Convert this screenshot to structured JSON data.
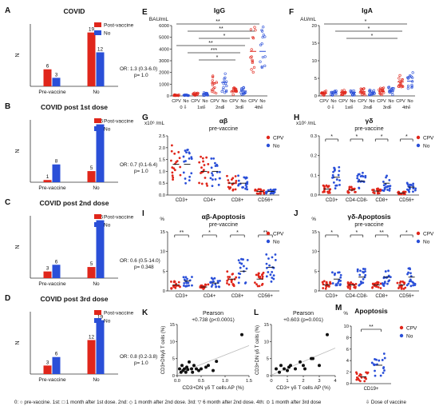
{
  "colors": {
    "cpv": "#e0261b",
    "no": "#2a4fd8",
    "line": "#222222",
    "axis": "#333333",
    "fit": "#bbbbbb"
  },
  "legend": {
    "cpv_bar": "Post-vaccine",
    "no": "No",
    "cpv_scatter": "CPV"
  },
  "footer": {
    "text": "0: ○ pre-vaccine.  1st: □ 1 month after 1st dose.  2nd: ◇ 1 month after 2nd dose.  3rd: ▽ 6 month after 2nd dose.  4th: ⊙ 1 month after 3rd dose",
    "vaccine_label": "Dose of vaccine"
  },
  "chart_data": [
    {
      "id": "A",
      "panel": "A",
      "type": "bar",
      "title": "COVID",
      "ylabel": "N",
      "categories": [
        "Pre-vaccine",
        "No"
      ],
      "series": [
        {
          "name": "Post-vaccine",
          "values": [
            6,
            19
          ]
        },
        {
          "name": "No",
          "values": [
            3,
            12
          ]
        }
      ],
      "ylim": [
        0,
        22
      ],
      "stat_line1": "OR: 1.3 (0.3-6.0)",
      "stat_line2": "p= 1.0"
    },
    {
      "id": "B",
      "panel": "B",
      "type": "bar",
      "title": "COVID post 1st dose",
      "ylabel": "N",
      "categories": [
        "Pre-vaccine",
        "No"
      ],
      "series": [
        {
          "name": "Post-vaccine",
          "values": [
            1,
            5
          ]
        },
        {
          "name": "No",
          "values": [
            8,
            26
          ]
        }
      ],
      "ylim": [
        0,
        28
      ],
      "stat_line1": "OR: 0.7 (0.1-6.4)",
      "stat_line2": "p= 1.0"
    },
    {
      "id": "C",
      "panel": "C",
      "type": "bar",
      "title": "COVID post 2nd dose",
      "ylabel": "N",
      "categories": [
        "Pre-vaccine",
        "No"
      ],
      "series": [
        {
          "name": "Post-vaccine",
          "values": [
            3,
            5
          ]
        },
        {
          "name": "No",
          "values": [
            6,
            26
          ]
        }
      ],
      "ylim": [
        0,
        28
      ],
      "stat_line1": "OR: 0.6 (0.5-14.0)",
      "stat_line2": "p= 0.348"
    },
    {
      "id": "D",
      "panel": "D",
      "type": "bar",
      "title": "COVID post 3rd dose",
      "ylabel": "N",
      "categories": [
        "Pre-vaccine",
        "No"
      ],
      "series": [
        {
          "name": "Post-vaccine",
          "values": [
            3,
            12
          ]
        },
        {
          "name": "No",
          "values": [
            6,
            19
          ]
        }
      ],
      "ylim": [
        0,
        22
      ],
      "stat_line1": "OR: 0.8 (0.2-3.8)",
      "stat_line2": "p= 1.0"
    },
    {
      "id": "E",
      "panel": "E",
      "type": "scatter",
      "title": "IgG",
      "ylabel": "BAU/mL",
      "ylim": [
        0,
        6000
      ],
      "yticks": [
        "0",
        "1000",
        "2000",
        "3000",
        "4000",
        "5000",
        "6000"
      ],
      "categories": [
        "CPV",
        "No",
        "CPV",
        "No",
        "CPV",
        "No",
        "CPV",
        "No",
        "CPV",
        "No"
      ],
      "groups": [
        "0",
        "1st",
        "2nd",
        "3rd",
        "4th"
      ],
      "means": [
        60,
        70,
        150,
        180,
        1100,
        1150,
        400,
        420,
        3800,
        3800
      ],
      "sig": [
        "**",
        "**",
        "*",
        "**",
        "***",
        "*"
      ]
    },
    {
      "id": "F",
      "panel": "F",
      "type": "scatter",
      "title": "IgA",
      "ylabel": "AU/mL",
      "ylim": [
        0,
        20
      ],
      "yticks": [
        "0",
        "5",
        "10",
        "15",
        "20"
      ],
      "categories": [
        "CPV",
        "No",
        "CPV",
        "No",
        "CPV",
        "No",
        "CPV",
        "No",
        "CPV",
        "No"
      ],
      "groups": [
        "0",
        "1st",
        "2nd",
        "3rd",
        "4th"
      ],
      "means": [
        0.8,
        0.9,
        1.0,
        1.0,
        1.2,
        1.1,
        1.3,
        1.4,
        4.0,
        4.2
      ],
      "sig": [
        "*",
        "*",
        "*"
      ]
    },
    {
      "id": "G",
      "panel": "G",
      "type": "scatter",
      "title": "αβ",
      "subtitle": "pre-vaccine",
      "unit": "x10⁶ /mL",
      "ylim": [
        0,
        2.5
      ],
      "yticks": [
        "0.0",
        "0.5",
        "1.0",
        "1.5",
        "2.0",
        "2.5"
      ],
      "categories": [
        "CD3+",
        "CD4+",
        "CD8+",
        "CD56+"
      ],
      "means": [
        [
          1.3,
          1.3
        ],
        [
          1.0,
          1.0
        ],
        [
          0.5,
          0.5
        ],
        [
          0.15,
          0.15
        ]
      ],
      "sig": []
    },
    {
      "id": "H",
      "panel": "H",
      "type": "scatter",
      "title": "γδ",
      "subtitle": "pre-vaccine",
      "unit": "x10⁶ /mL",
      "ylim": [
        0,
        0.3
      ],
      "yticks": [
        "0.0",
        "0.1",
        "0.2",
        "0.3"
      ],
      "categories": [
        "CD3+",
        "CD4-CD8-",
        "CD8+",
        "CD56+"
      ],
      "means": [
        [
          0.03,
          0.09
        ],
        [
          0.025,
          0.07
        ],
        [
          0.02,
          0.06
        ],
        [
          0.01,
          0.04
        ]
      ],
      "sig": [
        "*",
        "*",
        "*",
        "*"
      ]
    },
    {
      "id": "I",
      "panel": "I",
      "type": "scatter",
      "title": "αβ-Apoptosis",
      "subtitle": "pre-vaccine",
      "unit": "%",
      "ylim": [
        0,
        15
      ],
      "yticks": [
        "0",
        "5",
        "10",
        "15"
      ],
      "categories": [
        "CD3+",
        "CD4+",
        "CD8+",
        "CD56+"
      ],
      "means": [
        [
          1.5,
          2.5
        ],
        [
          1.0,
          2.0
        ],
        [
          3.0,
          5.0
        ],
        [
          3.0,
          6.0
        ]
      ],
      "sig": [
        "**",
        "*",
        "*",
        "**"
      ]
    },
    {
      "id": "J",
      "panel": "J",
      "type": "scatter",
      "title": "γδ-Apoptosis",
      "subtitle": "pre-vaccine",
      "unit": "%",
      "ylim": [
        0,
        15
      ],
      "yticks": [
        "0",
        "5",
        "10",
        "15"
      ],
      "categories": [
        "CD3+",
        "CD4-CD8-",
        "CD8+",
        "CD56+"
      ],
      "means": [
        [
          1.5,
          3.0
        ],
        [
          1.5,
          3.5
        ],
        [
          1.5,
          3.5
        ],
        [
          1.5,
          3.5
        ]
      ],
      "sig": [
        "*",
        "*",
        "**",
        "*"
      ]
    },
    {
      "id": "K",
      "panel": "K",
      "type": "scatter",
      "title": "Pearson",
      "subtitle": "+0.738 (p<0.0001)",
      "xlabel": "CD3+DN γδ T cells AP (%)",
      "ylabel": "CD3+DNγδ T cells (%)",
      "xlim": [
        0,
        1.5
      ],
      "ylim": [
        0,
        15
      ],
      "xticks": [
        "0.0",
        "0.5",
        "1.0",
        "1.5"
      ],
      "yticks": [
        "0",
        "5",
        "10",
        "15"
      ],
      "x": [
        0.05,
        0.08,
        0.1,
        0.12,
        0.15,
        0.18,
        0.2,
        0.22,
        0.25,
        0.3,
        0.32,
        0.35,
        0.4,
        0.45,
        0.5,
        0.6,
        0.65,
        0.75,
        0.82,
        1.35
      ],
      "y": [
        2,
        1,
        3,
        1.5,
        2,
        1,
        2.5,
        1.8,
        4,
        2,
        1,
        3,
        2,
        1.5,
        2,
        2.5,
        3,
        1.5,
        4.2,
        12
      ]
    },
    {
      "id": "L",
      "panel": "L",
      "type": "scatter",
      "title": "Pearson",
      "subtitle": "+0.603 (p=0.001)",
      "xlabel": "CD3+ γδ T cells AP (%)",
      "ylabel": "CD3+DN γδ T cells (%)",
      "xlim": [
        0,
        4
      ],
      "ylim": [
        0,
        15
      ],
      "xticks": [
        "0",
        "1",
        "2",
        "3",
        "4"
      ],
      "yticks": [
        "0",
        "5",
        "10",
        "15"
      ],
      "x": [
        0.3,
        0.5,
        0.6,
        0.8,
        1.0,
        1.1,
        1.2,
        1.5,
        1.8,
        2.0,
        2.1,
        2.5,
        2.6,
        3.0,
        3.5
      ],
      "y": [
        2,
        1,
        3,
        2,
        1.5,
        2.5,
        3,
        2,
        4,
        3,
        2,
        5,
        5,
        3,
        12
      ]
    },
    {
      "id": "M",
      "panel": "M",
      "type": "scatter",
      "title": "Apoptosis",
      "unit": "%",
      "ylim": [
        0,
        10
      ],
      "yticks": [
        "0",
        "2",
        "4",
        "6",
        "8",
        "10"
      ],
      "categories": [
        "CD19+"
      ],
      "means": [
        [
          1.2,
          3.2
        ]
      ],
      "sig": [
        "**"
      ]
    }
  ]
}
